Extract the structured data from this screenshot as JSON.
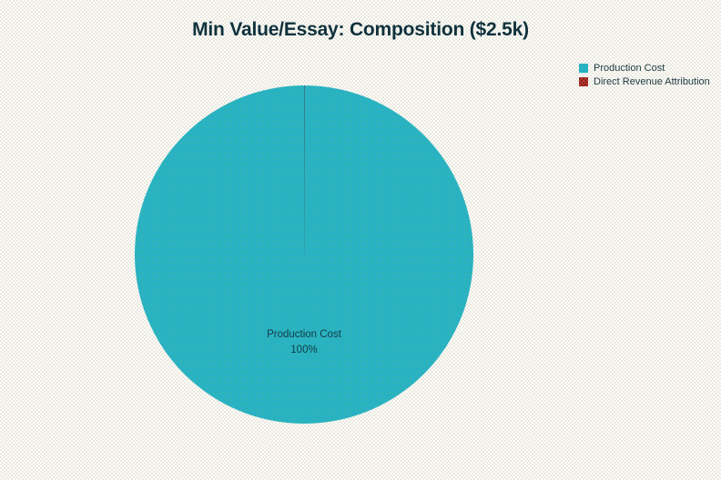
{
  "title": "Min Value/Essay: Composition ($2.5k)",
  "legend": {
    "items": [
      {
        "label": "Production Cost",
        "pattern": "solid"
      },
      {
        "label": "Direct Revenue Attribution",
        "pattern": "crosshatch"
      }
    ]
  },
  "pie_label": {
    "name": "Production Cost",
    "percent": "100%"
  },
  "chart_data": {
    "type": "pie",
    "title": "Min Value/Essay: Composition ($2.5k)",
    "labels": [
      "Production Cost",
      "Direct Revenue Attribution"
    ],
    "values": [
      100,
      0
    ],
    "value_unit": "percent",
    "colors": [
      "#29b2c2",
      "#d23b31"
    ],
    "legend_position": "top-right",
    "start_angle": "12-o-clock",
    "slice_labels": [
      "Production Cost 100%",
      null
    ],
    "background_color": "#f2f1ea",
    "title_color": "#0f313c"
  }
}
